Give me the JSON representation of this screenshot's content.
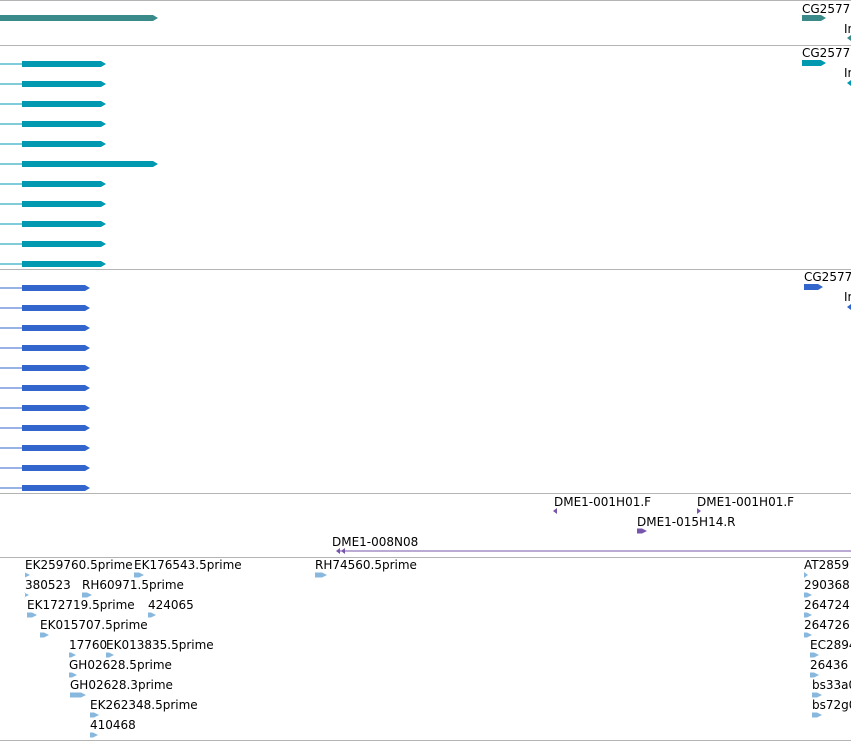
{
  "colors": {
    "track_teal_dark": "#3a8a8a",
    "track_teal": "#0099b0",
    "track_blue": "#3366cc",
    "track_purple": "#7755aa",
    "track_lightblue": "#88b8dd",
    "divider": "#b4b4b4"
  },
  "tracks": {
    "track1": {
      "gene_label": "CG2577",
      "sub_label": "In"
    },
    "track2": {
      "gene_label": "CG2577",
      "sub_label": "In"
    },
    "track3": {
      "gene_label": "CG2577",
      "sub_label": "In"
    },
    "track4": {
      "labels": [
        "DME1-001H01.F",
        "DME1-001H01.F",
        "DME1-015H14.R",
        "DME1-008N08"
      ]
    },
    "track5": {
      "labels": [
        "EK259760.5prime",
        "EK176543.5prime",
        "RH74560.5prime",
        "AT2859",
        "380523",
        "RH60971.5prime",
        "290368",
        "EK172719.5prime",
        "424065",
        "264724",
        "EK015707.5prime",
        "264726",
        "17760",
        "EK013835.5prime",
        "EC2894",
        "GH02628.5prime",
        "26436",
        "GH02628.3prime",
        "bs33a0",
        "EK262348.5prime",
        "bs72g0",
        "410468"
      ]
    }
  }
}
